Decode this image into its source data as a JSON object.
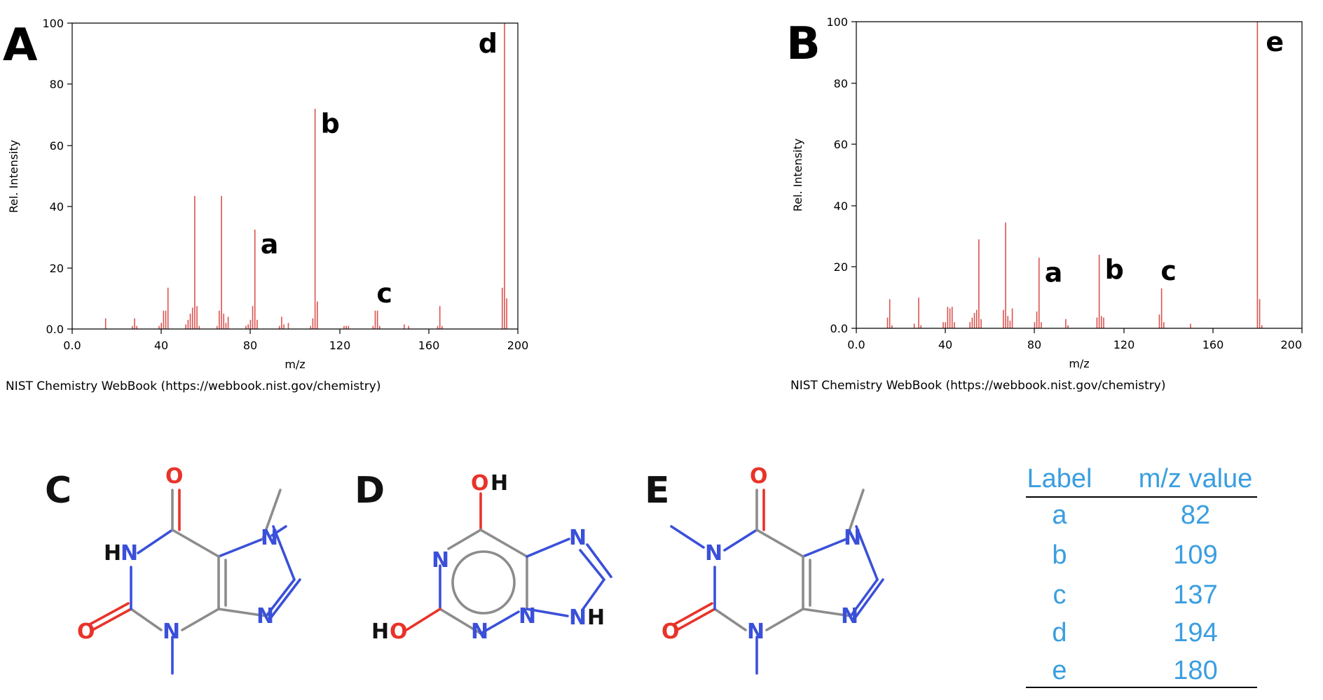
{
  "source_note": "NIST Chemistry WebBook (https://webbook.nist.gov/chemistry)",
  "chart_data": [
    {
      "type": "bar",
      "panel_label": "A",
      "xlabel": "m/z",
      "ylabel": "Rel. Intensity",
      "xlim": [
        0,
        200
      ],
      "ylim": [
        0,
        100
      ],
      "x_ticks": [
        "0.0",
        "40",
        "80",
        "120",
        "160",
        "200"
      ],
      "y_ticks": [
        "0.0",
        "20",
        "40",
        "60",
        "80",
        "100"
      ],
      "peaks": [
        {
          "x": 15,
          "y": 3.5
        },
        {
          "x": 27,
          "y": 1
        },
        {
          "x": 28,
          "y": 3.5
        },
        {
          "x": 29,
          "y": 1
        },
        {
          "x": 39,
          "y": 1
        },
        {
          "x": 40,
          "y": 2
        },
        {
          "x": 41,
          "y": 6
        },
        {
          "x": 42,
          "y": 6
        },
        {
          "x": 43,
          "y": 13.5
        },
        {
          "x": 51,
          "y": 1.5
        },
        {
          "x": 52,
          "y": 3
        },
        {
          "x": 53,
          "y": 5
        },
        {
          "x": 54,
          "y": 7
        },
        {
          "x": 55,
          "y": 43.5
        },
        {
          "x": 56,
          "y": 7.5
        },
        {
          "x": 57,
          "y": 1
        },
        {
          "x": 65,
          "y": 1
        },
        {
          "x": 66,
          "y": 6
        },
        {
          "x": 67,
          "y": 43.5
        },
        {
          "x": 68,
          "y": 5
        },
        {
          "x": 69,
          "y": 2
        },
        {
          "x": 70,
          "y": 4
        },
        {
          "x": 78,
          "y": 1
        },
        {
          "x": 79,
          "y": 1.5
        },
        {
          "x": 80,
          "y": 3
        },
        {
          "x": 81,
          "y": 7.5
        },
        {
          "x": 82,
          "y": 32.5
        },
        {
          "x": 83,
          "y": 3
        },
        {
          "x": 93,
          "y": 1
        },
        {
          "x": 94,
          "y": 4
        },
        {
          "x": 95,
          "y": 1.5
        },
        {
          "x": 97,
          "y": 2
        },
        {
          "x": 107,
          "y": 1
        },
        {
          "x": 108,
          "y": 3.5
        },
        {
          "x": 109,
          "y": 72
        },
        {
          "x": 110,
          "y": 9
        },
        {
          "x": 122,
          "y": 1
        },
        {
          "x": 123,
          "y": 1
        },
        {
          "x": 124,
          "y": 1
        },
        {
          "x": 135,
          "y": 1
        },
        {
          "x": 136,
          "y": 6
        },
        {
          "x": 137,
          "y": 6
        },
        {
          "x": 138,
          "y": 1
        },
        {
          "x": 149,
          "y": 1.5
        },
        {
          "x": 151,
          "y": 1
        },
        {
          "x": 164,
          "y": 1
        },
        {
          "x": 165,
          "y": 7.5
        },
        {
          "x": 166,
          "y": 1
        },
        {
          "x": 193,
          "y": 13.5
        },
        {
          "x": 194,
          "y": 100
        },
        {
          "x": 195,
          "y": 10
        }
      ],
      "annotations": [
        {
          "text": "a",
          "x": 82,
          "y": 32.5
        },
        {
          "text": "b",
          "x": 109,
          "y": 72
        },
        {
          "text": "c",
          "x": 137,
          "y": 6
        },
        {
          "text": "d",
          "x": 194,
          "y": 100
        }
      ]
    },
    {
      "type": "bar",
      "panel_label": "B",
      "xlabel": "m/z",
      "ylabel": "Rel. Intensity",
      "xlim": [
        0,
        200
      ],
      "ylim": [
        0,
        100
      ],
      "x_ticks": [
        "0.0",
        "40",
        "80",
        "120",
        "160",
        "200"
      ],
      "y_ticks": [
        "0.0",
        "20",
        "40",
        "60",
        "80",
        "100"
      ],
      "peaks": [
        {
          "x": 14,
          "y": 3.5
        },
        {
          "x": 15,
          "y": 9.5
        },
        {
          "x": 16,
          "y": 1
        },
        {
          "x": 26,
          "y": 1.5
        },
        {
          "x": 28,
          "y": 10
        },
        {
          "x": 29,
          "y": 1
        },
        {
          "x": 39,
          "y": 2
        },
        {
          "x": 40,
          "y": 2
        },
        {
          "x": 41,
          "y": 7
        },
        {
          "x": 42,
          "y": 6.5
        },
        {
          "x": 43,
          "y": 7
        },
        {
          "x": 44,
          "y": 2
        },
        {
          "x": 51,
          "y": 2
        },
        {
          "x": 52,
          "y": 3.5
        },
        {
          "x": 53,
          "y": 5
        },
        {
          "x": 54,
          "y": 6
        },
        {
          "x": 55,
          "y": 29
        },
        {
          "x": 56,
          "y": 3
        },
        {
          "x": 66,
          "y": 6
        },
        {
          "x": 67,
          "y": 34.5
        },
        {
          "x": 68,
          "y": 4
        },
        {
          "x": 69,
          "y": 2.5
        },
        {
          "x": 70,
          "y": 6.5
        },
        {
          "x": 80,
          "y": 2
        },
        {
          "x": 81,
          "y": 5.5
        },
        {
          "x": 82,
          "y": 23
        },
        {
          "x": 83,
          "y": 2
        },
        {
          "x": 94,
          "y": 3
        },
        {
          "x": 95,
          "y": 1
        },
        {
          "x": 108,
          "y": 3.5
        },
        {
          "x": 109,
          "y": 24
        },
        {
          "x": 110,
          "y": 4
        },
        {
          "x": 111,
          "y": 3.5
        },
        {
          "x": 136,
          "y": 4.5
        },
        {
          "x": 137,
          "y": 13
        },
        {
          "x": 138,
          "y": 2
        },
        {
          "x": 150,
          "y": 1.5
        },
        {
          "x": 180,
          "y": 100
        },
        {
          "x": 181,
          "y": 9.5
        },
        {
          "x": 182,
          "y": 1
        }
      ],
      "annotations": [
        {
          "text": "a",
          "x": 82,
          "y": 23
        },
        {
          "text": "b",
          "x": 109,
          "y": 24
        },
        {
          "text": "c",
          "x": 137,
          "y": 13
        },
        {
          "text": "e",
          "x": 180,
          "y": 100
        }
      ]
    }
  ],
  "structures": {
    "C": {
      "letter": "C",
      "atoms": [
        "O",
        "N",
        "H",
        "N",
        "O",
        "N",
        "N"
      ]
    },
    "D": {
      "letter": "D",
      "atoms": [
        "O",
        "H",
        "N",
        "N",
        "N",
        "H",
        "O",
        "H",
        "N",
        "N"
      ]
    },
    "E": {
      "letter": "E",
      "atoms": [
        "O",
        "N",
        "N",
        "O",
        "N",
        "N"
      ]
    }
  },
  "table": {
    "headers": [
      "Label",
      "m/z value"
    ],
    "rows": [
      {
        "label": "a",
        "value": "82"
      },
      {
        "label": "b",
        "value": "109"
      },
      {
        "label": "c",
        "value": "137"
      },
      {
        "label": "d",
        "value": "194"
      },
      {
        "label": "e",
        "value": "180"
      }
    ]
  }
}
